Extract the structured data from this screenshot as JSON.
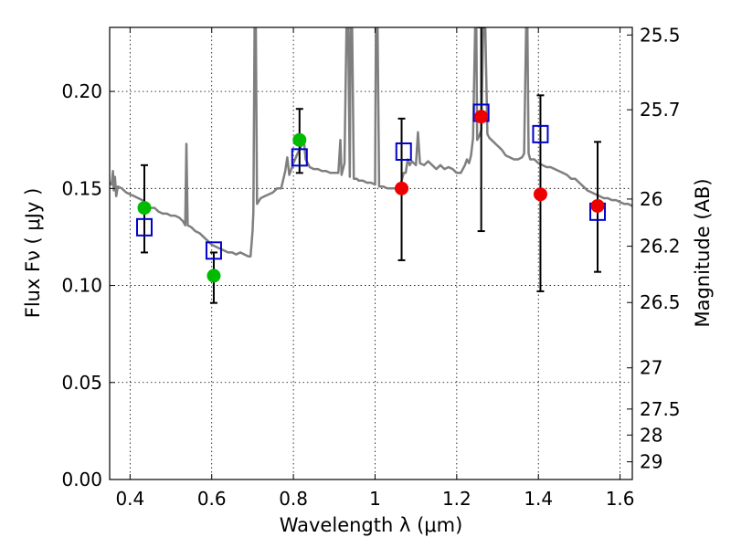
{
  "chart_data": {
    "type": "scatter",
    "xlabel": "Wavelength  λ (μm)",
    "ylabel": "Flux  Fν  ( μJy )",
    "y2label": "Magnitude (AB)",
    "xlim": [
      0.35,
      1.63
    ],
    "ylim": [
      0.0,
      0.233
    ],
    "grid": true,
    "x_ticks": [
      {
        "value": 0.4,
        "label": "0.4"
      },
      {
        "value": 0.6,
        "label": "0.6"
      },
      {
        "value": 0.8,
        "label": "0.8"
      },
      {
        "value": 1.0,
        "label": "1"
      },
      {
        "value": 1.2,
        "label": "1.2"
      },
      {
        "value": 1.4,
        "label": "1.4"
      },
      {
        "value": 1.6,
        "label": "1.6"
      }
    ],
    "y_ticks": [
      {
        "value": 0.0,
        "label": "0.00"
      },
      {
        "value": 0.05,
        "label": "0.05"
      },
      {
        "value": 0.1,
        "label": "0.10"
      },
      {
        "value": 0.15,
        "label": "0.15"
      },
      {
        "value": 0.2,
        "label": "0.20"
      }
    ],
    "y2_ticks": [
      {
        "mag": 25.5,
        "label": "25.5"
      },
      {
        "mag": 25.7,
        "label": "25.7"
      },
      {
        "mag": 26.0,
        "label": "26"
      },
      {
        "mag": 26.2,
        "label": "26.2"
      },
      {
        "mag": 26.5,
        "label": "26.5"
      },
      {
        "mag": 27.0,
        "label": "27"
      },
      {
        "mag": 27.5,
        "label": "27.5"
      },
      {
        "mag": 28.0,
        "label": "28"
      },
      {
        "mag": 29.0,
        "label": "29"
      }
    ],
    "spectrum": {
      "color": "#7f7f7f",
      "points": [
        [
          0.35,
          0.153
        ],
        [
          0.355,
          0.152
        ],
        [
          0.358,
          0.159
        ],
        [
          0.36,
          0.149
        ],
        [
          0.363,
          0.156
        ],
        [
          0.366,
          0.146
        ],
        [
          0.37,
          0.151
        ],
        [
          0.38,
          0.15
        ],
        [
          0.39,
          0.148
        ],
        [
          0.4,
          0.147
        ],
        [
          0.41,
          0.146
        ],
        [
          0.42,
          0.145
        ],
        [
          0.43,
          0.144
        ],
        [
          0.44,
          0.142
        ],
        [
          0.45,
          0.14
        ],
        [
          0.46,
          0.14
        ],
        [
          0.47,
          0.138
        ],
        [
          0.48,
          0.137
        ],
        [
          0.49,
          0.137
        ],
        [
          0.5,
          0.136
        ],
        [
          0.51,
          0.136
        ],
        [
          0.52,
          0.135
        ],
        [
          0.53,
          0.133
        ],
        [
          0.535,
          0.131
        ],
        [
          0.538,
          0.173
        ],
        [
          0.541,
          0.131
        ],
        [
          0.55,
          0.13
        ],
        [
          0.56,
          0.128
        ],
        [
          0.57,
          0.127
        ],
        [
          0.58,
          0.125
        ],
        [
          0.59,
          0.123
        ],
        [
          0.6,
          0.121
        ],
        [
          0.61,
          0.12
        ],
        [
          0.62,
          0.119
        ],
        [
          0.63,
          0.118
        ],
        [
          0.64,
          0.117
        ],
        [
          0.65,
          0.117
        ],
        [
          0.66,
          0.116
        ],
        [
          0.67,
          0.117
        ],
        [
          0.68,
          0.116
        ],
        [
          0.69,
          0.115
        ],
        [
          0.695,
          0.115
        ],
        [
          0.7,
          0.128
        ],
        [
          0.702,
          0.138
        ],
        [
          0.705,
          0.233
        ],
        [
          0.708,
          0.233
        ],
        [
          0.711,
          0.142
        ],
        [
          0.72,
          0.145
        ],
        [
          0.73,
          0.146
        ],
        [
          0.74,
          0.147
        ],
        [
          0.75,
          0.148
        ],
        [
          0.76,
          0.15
        ],
        [
          0.77,
          0.15
        ],
        [
          0.78,
          0.159
        ],
        [
          0.785,
          0.166
        ],
        [
          0.79,
          0.157
        ],
        [
          0.8,
          0.163
        ],
        [
          0.81,
          0.168
        ],
        [
          0.82,
          0.172
        ],
        [
          0.825,
          0.176
        ],
        [
          0.83,
          0.165
        ],
        [
          0.84,
          0.161
        ],
        [
          0.85,
          0.16
        ],
        [
          0.86,
          0.16
        ],
        [
          0.87,
          0.159
        ],
        [
          0.88,
          0.159
        ],
        [
          0.89,
          0.158
        ],
        [
          0.9,
          0.158
        ],
        [
          0.91,
          0.158
        ],
        [
          0.915,
          0.175
        ],
        [
          0.918,
          0.157
        ],
        [
          0.925,
          0.163
        ],
        [
          0.93,
          0.233
        ],
        [
          0.934,
          0.233
        ],
        [
          0.938,
          0.156
        ],
        [
          0.94,
          0.233
        ],
        [
          0.944,
          0.233
        ],
        [
          0.948,
          0.155
        ],
        [
          0.955,
          0.155
        ],
        [
          0.96,
          0.154
        ],
        [
          0.97,
          0.154
        ],
        [
          0.98,
          0.153
        ],
        [
          0.99,
          0.153
        ],
        [
          1.0,
          0.152
        ],
        [
          1.002,
          0.233
        ],
        [
          1.006,
          0.233
        ],
        [
          1.01,
          0.151
        ],
        [
          1.02,
          0.151
        ],
        [
          1.03,
          0.15
        ],
        [
          1.04,
          0.15
        ],
        [
          1.05,
          0.15
        ],
        [
          1.06,
          0.15
        ],
        [
          1.07,
          0.158
        ],
        [
          1.075,
          0.158
        ],
        [
          1.08,
          0.165
        ],
        [
          1.085,
          0.162
        ],
        [
          1.09,
          0.164
        ],
        [
          1.1,
          0.162
        ],
        [
          1.105,
          0.179
        ],
        [
          1.11,
          0.163
        ],
        [
          1.12,
          0.162
        ],
        [
          1.13,
          0.164
        ],
        [
          1.14,
          0.162
        ],
        [
          1.15,
          0.16
        ],
        [
          1.16,
          0.162
        ],
        [
          1.17,
          0.16
        ],
        [
          1.18,
          0.161
        ],
        [
          1.19,
          0.16
        ],
        [
          1.2,
          0.158
        ],
        [
          1.21,
          0.158
        ],
        [
          1.22,
          0.162
        ],
        [
          1.225,
          0.165
        ],
        [
          1.23,
          0.163
        ],
        [
          1.235,
          0.167
        ],
        [
          1.24,
          0.176
        ],
        [
          1.245,
          0.233
        ],
        [
          1.248,
          0.233
        ],
        [
          1.25,
          0.175
        ],
        [
          1.255,
          0.177
        ],
        [
          1.26,
          0.18
        ],
        [
          1.265,
          0.233
        ],
        [
          1.27,
          0.233
        ],
        [
          1.275,
          0.178
        ],
        [
          1.28,
          0.176
        ],
        [
          1.29,
          0.174
        ],
        [
          1.3,
          0.172
        ],
        [
          1.31,
          0.17
        ],
        [
          1.32,
          0.167
        ],
        [
          1.33,
          0.166
        ],
        [
          1.34,
          0.165
        ],
        [
          1.35,
          0.165
        ],
        [
          1.36,
          0.166
        ],
        [
          1.365,
          0.168
        ],
        [
          1.37,
          0.233
        ],
        [
          1.373,
          0.233
        ],
        [
          1.376,
          0.168
        ],
        [
          1.38,
          0.165
        ],
        [
          1.39,
          0.165
        ],
        [
          1.4,
          0.163
        ],
        [
          1.41,
          0.162
        ],
        [
          1.42,
          0.161
        ],
        [
          1.43,
          0.161
        ],
        [
          1.44,
          0.16
        ],
        [
          1.45,
          0.159
        ],
        [
          1.46,
          0.158
        ],
        [
          1.47,
          0.157
        ],
        [
          1.48,
          0.155
        ],
        [
          1.49,
          0.155
        ],
        [
          1.5,
          0.153
        ],
        [
          1.51,
          0.151
        ],
        [
          1.52,
          0.149
        ],
        [
          1.53,
          0.148
        ],
        [
          1.54,
          0.147
        ],
        [
          1.55,
          0.146
        ],
        [
          1.56,
          0.145
        ],
        [
          1.57,
          0.145
        ],
        [
          1.58,
          0.144
        ],
        [
          1.59,
          0.144
        ],
        [
          1.6,
          0.143
        ],
        [
          1.61,
          0.142
        ],
        [
          1.62,
          0.142
        ],
        [
          1.63,
          0.141
        ]
      ]
    },
    "series": [
      {
        "marker": "square-open",
        "color": "#0000cc",
        "points": [
          {
            "x": 0.435,
            "y": 0.13
          },
          {
            "x": 0.605,
            "y": 0.118
          },
          {
            "x": 0.815,
            "y": 0.166
          },
          {
            "x": 1.07,
            "y": 0.169
          },
          {
            "x": 1.26,
            "y": 0.189
          },
          {
            "x": 1.405,
            "y": 0.178
          },
          {
            "x": 1.545,
            "y": 0.138
          }
        ]
      },
      {
        "marker": "circle-filled",
        "color": "#00bb00",
        "points": [
          {
            "x": 0.435,
            "y": 0.14,
            "yerr_low": 0.117,
            "yerr_high": 0.162
          },
          {
            "x": 0.605,
            "y": 0.105,
            "yerr_low": 0.091,
            "yerr_high": 0.117
          },
          {
            "x": 0.815,
            "y": 0.175,
            "yerr_low": 0.158,
            "yerr_high": 0.191
          }
        ]
      },
      {
        "marker": "circle-filled",
        "color": "#ee0000",
        "points": [
          {
            "x": 1.065,
            "y": 0.15,
            "yerr_low": 0.113,
            "yerr_high": 0.186
          },
          {
            "x": 1.26,
            "y": 0.187,
            "yerr_low": 0.128,
            "yerr_high": 0.233
          },
          {
            "x": 1.405,
            "y": 0.147,
            "yerr_low": 0.097,
            "yerr_high": 0.198
          },
          {
            "x": 1.545,
            "y": 0.141,
            "yerr_low": 0.107,
            "yerr_high": 0.174
          }
        ]
      }
    ]
  }
}
